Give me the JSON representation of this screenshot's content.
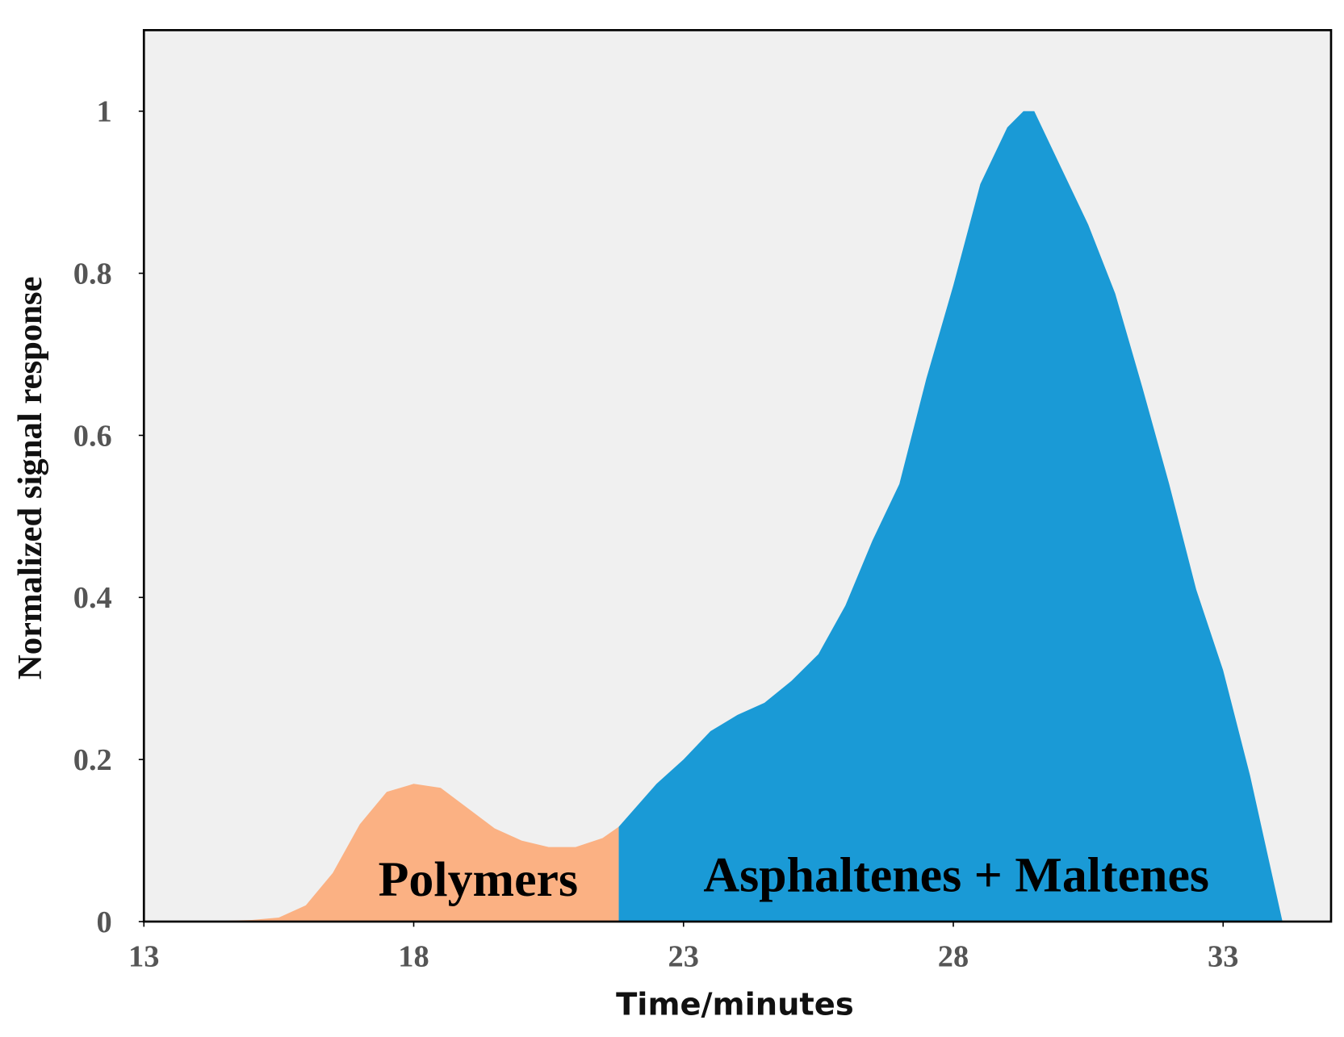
{
  "chart_data": {
    "type": "area",
    "xlabel": "Time/minutes",
    "ylabel": "Normalized signal response",
    "xlim": [
      13,
      35
    ],
    "ylim": [
      0,
      1.1
    ],
    "xticks": [
      13,
      18,
      23,
      28,
      33
    ],
    "yticks": [
      0,
      0.2,
      0.4,
      0.6,
      0.8,
      1
    ],
    "annotations": [
      "Polymers",
      "Asphaltenes + Maltenes"
    ],
    "series": [
      {
        "color": "#fbb183",
        "x": [
          13,
          14,
          15,
          15.5,
          16,
          16.5,
          17,
          17.5,
          18,
          18.5,
          19,
          19.5,
          20,
          20.5,
          21,
          21.5,
          21.8
        ],
        "values": [
          0,
          0,
          0.002,
          0.005,
          0.02,
          0.06,
          0.12,
          0.16,
          0.17,
          0.165,
          0.14,
          0.115,
          0.1,
          0.092,
          0.092,
          0.103,
          0.117
        ]
      },
      {
        "color": "#1a9ad6",
        "x": [
          21.8,
          22.5,
          23,
          23.5,
          24,
          24.5,
          25,
          25.5,
          26,
          26.5,
          27,
          27.5,
          28,
          28.5,
          29,
          29.3,
          29.5,
          30,
          30.5,
          31,
          31.5,
          32,
          32.5,
          33,
          33.5,
          33.7,
          34,
          34.1,
          35
        ],
        "values": [
          0.117,
          0.17,
          0.2,
          0.235,
          0.255,
          0.27,
          0.297,
          0.33,
          0.39,
          0.47,
          0.54,
          0.67,
          0.785,
          0.91,
          0.98,
          1.0,
          1.0,
          0.93,
          0.86,
          0.775,
          0.66,
          0.54,
          0.41,
          0.31,
          0.18,
          0.12,
          0.03,
          0,
          0
        ]
      }
    ]
  }
}
